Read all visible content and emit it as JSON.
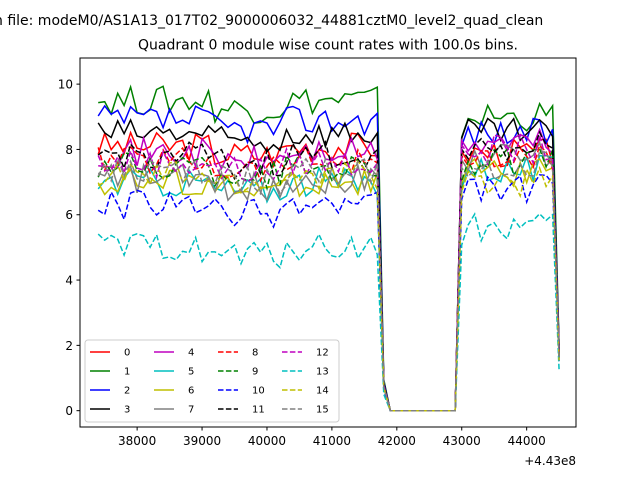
{
  "chart_data": {
    "type": "line",
    "suptitle": "n file: modeM0/AS1A13_017T02_9000006032_44881cztM0_level2_quad_clean",
    "title": "Quadrant 0 module wise count rates with 100.0s bins.",
    "xlabel": "",
    "ylabel": "",
    "x_offset_label": "+4.43e8",
    "xlim": [
      37120,
      44760
    ],
    "ylim": [
      -0.5,
      10.8
    ],
    "xticks": [
      38000,
      39000,
      40000,
      41000,
      42000,
      43000,
      44000
    ],
    "yticks": [
      0,
      2,
      4,
      6,
      8,
      10
    ],
    "xtick_labels": [
      "38000",
      "39000",
      "40000",
      "41000",
      "42000",
      "43000",
      "44000"
    ],
    "ytick_labels": [
      "0",
      "2",
      "4",
      "6",
      "8",
      "10"
    ],
    "grid": false,
    "legend": {
      "placement": "lower-left",
      "columns": 4
    },
    "segments": {
      "first": {
        "x_start": 37400,
        "x_end": 41700,
        "step": 100
      },
      "drop": {
        "x": [
          41800,
          41900
        ],
        "y_scale": [
          0.1,
          0.0
        ]
      },
      "gap": {
        "x_start": 42000,
        "x_end": 42900,
        "step": 100
      },
      "second": {
        "x_start": 43000,
        "x_end": 44400,
        "step": 100
      },
      "end": {
        "x": 44500,
        "y_scale": 0.22
      }
    },
    "series": [
      {
        "name": "0",
        "color": "#ff0000",
        "style": "solid",
        "level1": 8.1,
        "level2": 7.9
      },
      {
        "name": "1",
        "color": "#008000",
        "style": "solid",
        "level1": 9.5,
        "level2": 9.0
      },
      {
        "name": "2",
        "color": "#0000ff",
        "style": "solid",
        "level1": 8.9,
        "level2": 8.5
      },
      {
        "name": "3",
        "color": "#000000",
        "style": "solid",
        "level1": 8.5,
        "level2": 8.5
      },
      {
        "name": "4",
        "color": "#bf00bf",
        "style": "solid",
        "level1": 7.9,
        "level2": 8.2
      },
      {
        "name": "5",
        "color": "#00bfbf",
        "style": "solid",
        "level1": 7.0,
        "level2": 7.4
      },
      {
        "name": "6",
        "color": "#bfbf00",
        "style": "solid",
        "level1": 7.0,
        "level2": 7.3
      },
      {
        "name": "7",
        "color": "#808080",
        "style": "solid",
        "level1": 7.1,
        "level2": 7.8
      },
      {
        "name": "8",
        "color": "#ff0000",
        "style": "dashed",
        "level1": 7.7,
        "level2": 7.7
      },
      {
        "name": "9",
        "color": "#008000",
        "style": "dashed",
        "level1": 7.5,
        "level2": 7.6
      },
      {
        "name": "10",
        "color": "#0000ff",
        "style": "dashed",
        "level1": 6.3,
        "level2": 6.8
      },
      {
        "name": "11",
        "color": "#000000",
        "style": "dashed",
        "level1": 7.8,
        "level2": 8.1
      },
      {
        "name": "12",
        "color": "#bf00bf",
        "style": "dashed",
        "level1": 7.6,
        "level2": 8.0
      },
      {
        "name": "13",
        "color": "#00bfbf",
        "style": "dashed",
        "level1": 5.0,
        "level2": 5.6
      },
      {
        "name": "14",
        "color": "#bfbf00",
        "style": "dashed",
        "level1": 7.2,
        "level2": 7.0
      },
      {
        "name": "15",
        "color": "#808080",
        "style": "dashed",
        "level1": 7.3,
        "level2": 7.5
      }
    ]
  }
}
